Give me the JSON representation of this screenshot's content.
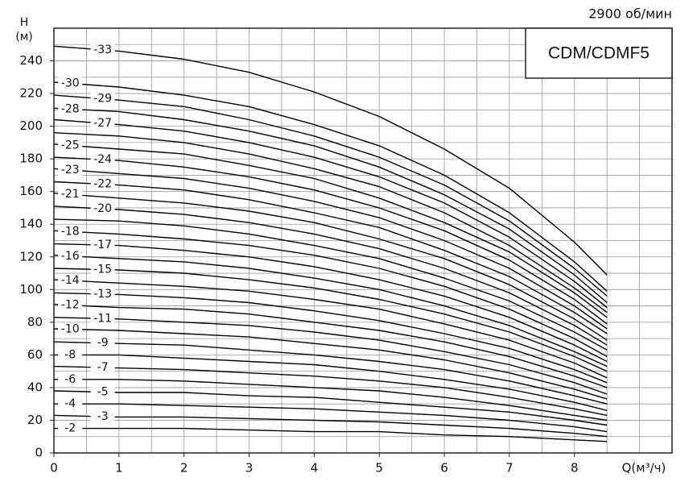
{
  "chart_data": {
    "type": "line",
    "title": "CDM/CDMF5",
    "subtitle": "2900 об/мин",
    "y_label": "H",
    "y_unit": "(м)",
    "x_label": "Q(м³/ч)",
    "x": [
      0,
      1,
      2,
      3,
      4,
      5,
      6,
      7,
      8,
      8.5
    ],
    "xlim": [
      0,
      9.5
    ],
    "ylim": [
      0,
      260
    ],
    "xticks": [
      0,
      1,
      2,
      3,
      4,
      5,
      6,
      7,
      8
    ],
    "yticks": [
      0,
      20,
      40,
      60,
      80,
      100,
      120,
      140,
      160,
      180,
      200,
      220,
      240
    ],
    "xgrid": [
      0.5,
      1,
      1.5,
      2,
      2.5,
      3,
      3.5,
      4,
      4.5,
      5,
      5.5,
      6,
      6.5,
      7,
      7.5,
      8,
      8.5,
      9,
      9.5
    ],
    "ygrid": [
      10,
      20,
      30,
      40,
      50,
      60,
      70,
      80,
      90,
      100,
      110,
      120,
      130,
      140,
      150,
      160,
      170,
      180,
      190,
      200,
      210,
      220,
      230,
      240,
      250,
      260
    ],
    "grid": true,
    "series": [
      {
        "name": "-2",
        "color": "#000000",
        "values": [
          15,
          15,
          15,
          14,
          13,
          13,
          11,
          10,
          8,
          7
        ]
      },
      {
        "name": "-3",
        "color": "#000000",
        "values": [
          23,
          22,
          22,
          21,
          20,
          19,
          17,
          15,
          12,
          10
        ]
      },
      {
        "name": "-4",
        "color": "#000000",
        "values": [
          30,
          30,
          29,
          28,
          27,
          25,
          23,
          20,
          16,
          13
        ]
      },
      {
        "name": "-5",
        "color": "#000000",
        "values": [
          38,
          37,
          37,
          35,
          34,
          31,
          28,
          25,
          20,
          17
        ]
      },
      {
        "name": "-6",
        "color": "#000000",
        "values": [
          45,
          45,
          44,
          42,
          40,
          38,
          34,
          29,
          23,
          20
        ]
      },
      {
        "name": "-7",
        "color": "#000000",
        "values": [
          53,
          52,
          51,
          49,
          47,
          44,
          40,
          34,
          27,
          23
        ]
      },
      {
        "name": "-8",
        "color": "#000000",
        "values": [
          60,
          60,
          58,
          56,
          54,
          50,
          45,
          39,
          31,
          26
        ]
      },
      {
        "name": "-9",
        "color": "#000000",
        "values": [
          68,
          67,
          66,
          63,
          60,
          56,
          51,
          44,
          35,
          30
        ]
      },
      {
        "name": "-10",
        "color": "#000000",
        "values": [
          76,
          75,
          73,
          71,
          67,
          63,
          57,
          49,
          39,
          33
        ]
      },
      {
        "name": "-11",
        "color": "#000000",
        "values": [
          83,
          82,
          80,
          78,
          74,
          69,
          62,
          54,
          43,
          36
        ]
      },
      {
        "name": "-12",
        "color": "#000000",
        "values": [
          91,
          89,
          88,
          85,
          80,
          75,
          68,
          59,
          47,
          40
        ]
      },
      {
        "name": "-13",
        "color": "#000000",
        "values": [
          98,
          97,
          95,
          92,
          87,
          81,
          73,
          64,
          51,
          43
        ]
      },
      {
        "name": "-14",
        "color": "#000000",
        "values": [
          106,
          104,
          102,
          99,
          94,
          88,
          79,
          69,
          55,
          46
        ]
      },
      {
        "name": "-15",
        "color": "#000000",
        "values": [
          113,
          112,
          110,
          106,
          101,
          94,
          85,
          74,
          59,
          50
        ]
      },
      {
        "name": "-16",
        "color": "#000000",
        "values": [
          121,
          119,
          117,
          113,
          107,
          100,
          90,
          78,
          62,
          53
        ]
      },
      {
        "name": "-17",
        "color": "#000000",
        "values": [
          128,
          127,
          124,
          120,
          114,
          106,
          96,
          83,
          66,
          56
        ]
      },
      {
        "name": "-18",
        "color": "#000000",
        "values": [
          136,
          134,
          131,
          127,
          121,
          113,
          102,
          88,
          70,
          59
        ]
      },
      {
        "name": null,
        "color": "#000000",
        "values": [
          143,
          142,
          139,
          134,
          127,
          119,
          107,
          93,
          74,
          63
        ]
      },
      {
        "name": "-20",
        "color": "#000000",
        "values": [
          151,
          149,
          146,
          141,
          134,
          125,
          113,
          98,
          78,
          66
        ]
      },
      {
        "name": "-21",
        "color": "#000000",
        "values": [
          159,
          156,
          153,
          148,
          141,
          131,
          119,
          103,
          82,
          69
        ]
      },
      {
        "name": "-22",
        "color": "#000000",
        "values": [
          166,
          164,
          161,
          155,
          147,
          138,
          124,
          108,
          86,
          73
        ]
      },
      {
        "name": "-23",
        "color": "#000000",
        "values": [
          174,
          171,
          168,
          162,
          154,
          144,
          130,
          113,
          90,
          76
        ]
      },
      {
        "name": "-24",
        "color": "#000000",
        "values": [
          181,
          179,
          175,
          169,
          161,
          150,
          136,
          118,
          94,
          79
        ]
      },
      {
        "name": "-25",
        "color": "#000000",
        "values": [
          189,
          186,
          183,
          176,
          168,
          156,
          141,
          123,
          98,
          83
        ]
      },
      {
        "name": null,
        "color": "#000000",
        "values": [
          196,
          194,
          190,
          183,
          174,
          163,
          147,
          127,
          101,
          86
        ]
      },
      {
        "name": "-27",
        "color": "#000000",
        "values": [
          204,
          201,
          197,
          190,
          181,
          169,
          153,
          132,
          105,
          89
        ]
      },
      {
        "name": "-28",
        "color": "#000000",
        "values": [
          211,
          209,
          204,
          197,
          188,
          175,
          158,
          137,
          109,
          92
        ]
      },
      {
        "name": "-29",
        "color": "#000000",
        "values": [
          219,
          216,
          212,
          204,
          194,
          181,
          164,
          142,
          113,
          96
        ]
      },
      {
        "name": "-30",
        "color": "#000000",
        "values": [
          227,
          224,
          219,
          212,
          201,
          188,
          170,
          147,
          117,
          99
        ]
      },
      {
        "name": "-33",
        "color": "#000000",
        "values": [
          249,
          246,
          241,
          233,
          221,
          206,
          186,
          162,
          129,
          109
        ]
      }
    ]
  }
}
